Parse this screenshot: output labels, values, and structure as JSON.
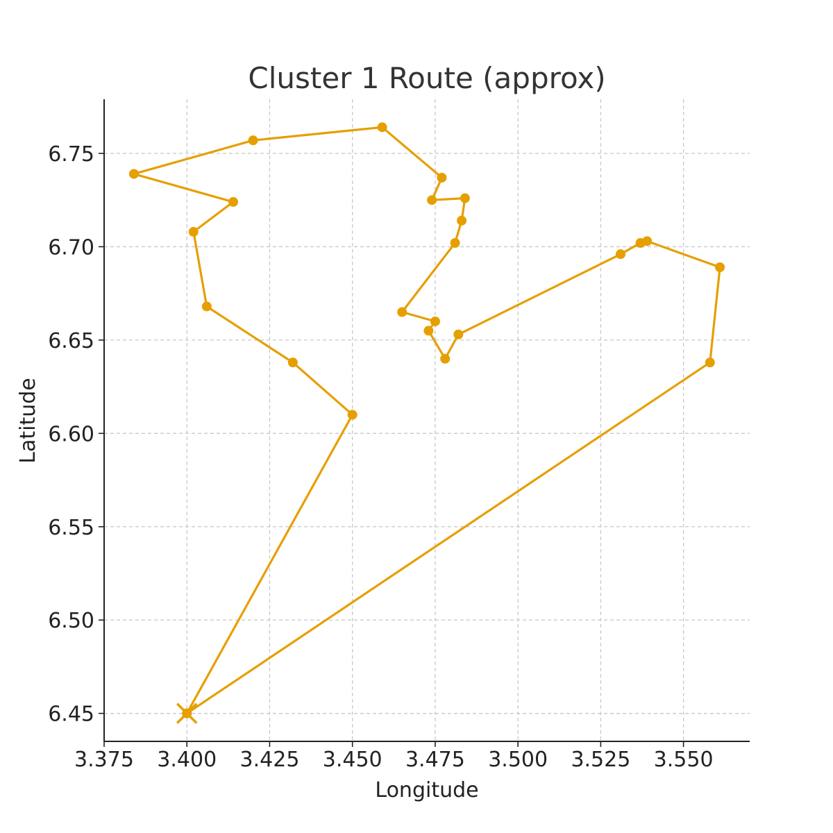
{
  "chart_data": {
    "type": "line",
    "title": "Cluster 1 Route (approx)",
    "xlabel": "Longitude",
    "ylabel": "Latitude",
    "xlim": [
      3.375,
      3.57
    ],
    "ylim": [
      6.435,
      6.779
    ],
    "xticks": [
      3.375,
      3.4,
      3.425,
      3.45,
      3.475,
      3.5,
      3.525,
      3.55
    ],
    "xtick_labels": [
      "3.375",
      "3.400",
      "3.425",
      "3.450",
      "3.475",
      "3.500",
      "3.525",
      "3.550"
    ],
    "yticks": [
      6.45,
      6.5,
      6.55,
      6.6,
      6.65,
      6.7,
      6.75
    ],
    "ytick_labels": [
      "6.45",
      "6.50",
      "6.55",
      "6.60",
      "6.65",
      "6.70",
      "6.75"
    ],
    "grid": true,
    "color": "#E69F00",
    "depot": {
      "x": 3.4,
      "y": 6.45
    },
    "series": [
      {
        "x": [
          3.4,
          3.45,
          3.432,
          3.406,
          3.402,
          3.414,
          3.384,
          3.42,
          3.459,
          3.477,
          3.474,
          3.484,
          3.483,
          3.481,
          3.465,
          3.475,
          3.473,
          3.478,
          3.482,
          3.531,
          3.537,
          3.539,
          3.561,
          3.558,
          3.4
        ],
        "y": [
          6.45,
          6.61,
          6.638,
          6.668,
          6.708,
          6.724,
          6.739,
          6.757,
          6.764,
          6.737,
          6.725,
          6.726,
          6.714,
          6.702,
          6.665,
          6.66,
          6.655,
          6.64,
          6.653,
          6.696,
          6.702,
          6.703,
          6.689,
          6.638,
          6.45
        ]
      }
    ]
  }
}
